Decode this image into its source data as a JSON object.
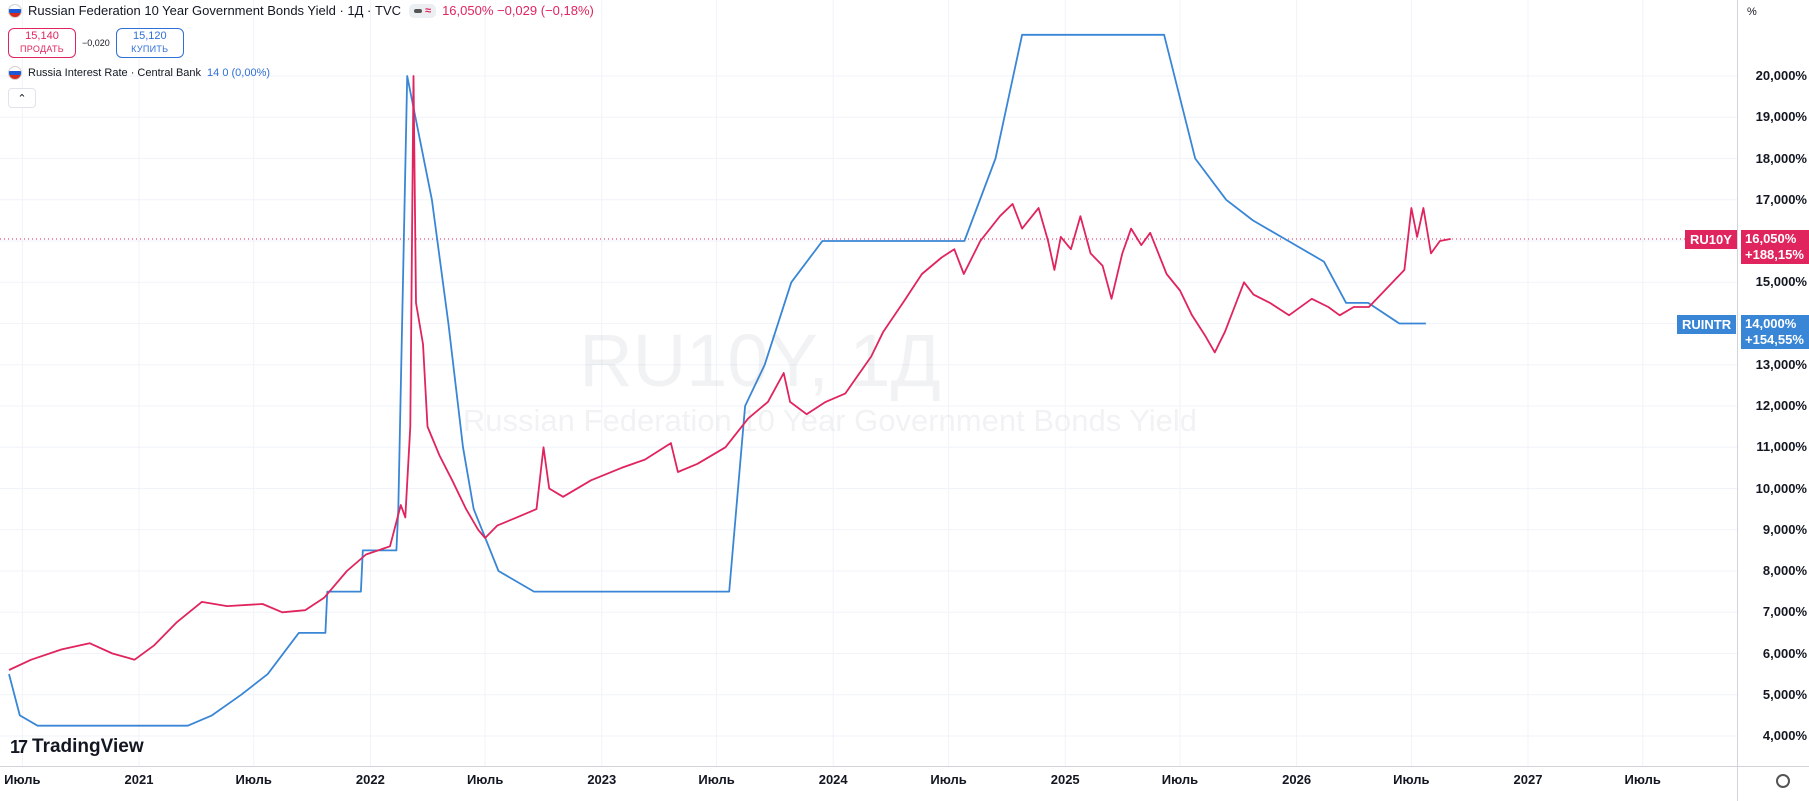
{
  "header": {
    "title": "Russian Federation 10 Year Government Bonds Yield · 1Д · TVC",
    "change": "16,050% −0,029 (−0,18%)",
    "sell_value": "15,140",
    "sell_label": "ПРОДАТЬ",
    "spread": "−0,020",
    "buy_value": "15,120",
    "buy_label": "КУПИТЬ",
    "overlay_title": "Russia Interest Rate · Central Bank",
    "overlay_value": "14 0 (0,00%)",
    "collapse_icon": "chevron-up-icon"
  },
  "watermark": {
    "main": "RU10Y, 1Д",
    "sub": "Russian Federation 10 Year Government Bonds Yield"
  },
  "branding": {
    "logo": "TradingView"
  },
  "chart_data": {
    "type": "line",
    "y_unit": "%",
    "ylim": [
      3.5,
      21.8
    ],
    "y_ticks": [
      "4,000%",
      "5,000%",
      "6,000%",
      "7,000%",
      "8,000%",
      "9,000%",
      "10,000%",
      "11,000%",
      "12,000%",
      "13,000%",
      "14,000%",
      "15,000%",
      "16,000%",
      "17,000%",
      "18,000%",
      "19,000%",
      "20,000%"
    ],
    "x_ticks": [
      {
        "label": "Июль",
        "date": "2020-07-01"
      },
      {
        "label": "2021",
        "date": "2021-01-01"
      },
      {
        "label": "Июль",
        "date": "2021-07-01"
      },
      {
        "label": "2022",
        "date": "2022-01-01"
      },
      {
        "label": "Июль",
        "date": "2022-07-01"
      },
      {
        "label": "2023",
        "date": "2023-01-01"
      },
      {
        "label": "Июль",
        "date": "2023-07-01"
      },
      {
        "label": "2024",
        "date": "2024-01-01"
      },
      {
        "label": "Июль",
        "date": "2024-07-01"
      },
      {
        "label": "2025",
        "date": "2025-01-01"
      },
      {
        "label": "Июль",
        "date": "2025-07-01"
      },
      {
        "label": "2026",
        "date": "2026-01-01"
      },
      {
        "label": "Июль",
        "date": "2026-07-01"
      },
      {
        "label": "2027",
        "date": "2027-01-01"
      },
      {
        "label": "Июль",
        "date": "2027-07-01"
      }
    ],
    "grid": true,
    "series": [
      {
        "name": "RU10Y",
        "color": "#e0245e",
        "last_value": "16,050%",
        "last_change": "+188,15%",
        "points": [
          [
            "2020-06-10",
            5.6
          ],
          [
            "2020-07-15",
            5.85
          ],
          [
            "2020-09-01",
            6.1
          ],
          [
            "2020-10-15",
            6.25
          ],
          [
            "2020-11-20",
            6.0
          ],
          [
            "2020-12-25",
            5.85
          ],
          [
            "2021-01-25",
            6.2
          ],
          [
            "2021-03-01",
            6.75
          ],
          [
            "2021-04-10",
            7.25
          ],
          [
            "2021-05-20",
            7.15
          ],
          [
            "2021-07-15",
            7.2
          ],
          [
            "2021-08-15",
            7.0
          ],
          [
            "2021-09-20",
            7.05
          ],
          [
            "2021-10-20",
            7.35
          ],
          [
            "2021-11-25",
            8.0
          ],
          [
            "2021-12-25",
            8.4
          ],
          [
            "2022-02-01",
            8.6
          ],
          [
            "2022-02-18",
            9.6
          ],
          [
            "2022-02-25",
            9.3
          ],
          [
            "2022-03-05",
            11.5
          ],
          [
            "2022-03-10",
            20.0
          ],
          [
            "2022-03-14",
            14.5
          ],
          [
            "2022-03-25",
            13.5
          ],
          [
            "2022-04-01",
            11.5
          ],
          [
            "2022-04-20",
            10.8
          ],
          [
            "2022-05-10",
            10.2
          ],
          [
            "2022-06-01",
            9.5
          ],
          [
            "2022-06-20",
            9.0
          ],
          [
            "2022-07-01",
            8.8
          ],
          [
            "2022-07-20",
            9.1
          ],
          [
            "2022-08-20",
            9.3
          ],
          [
            "2022-09-20",
            9.5
          ],
          [
            "2022-10-01",
            11.0
          ],
          [
            "2022-10-10",
            10.0
          ],
          [
            "2022-11-01",
            9.8
          ],
          [
            "2022-12-15",
            10.2
          ],
          [
            "2023-02-01",
            10.5
          ],
          [
            "2023-03-10",
            10.7
          ],
          [
            "2023-04-20",
            11.1
          ],
          [
            "2023-05-01",
            10.4
          ],
          [
            "2023-06-01",
            10.6
          ],
          [
            "2023-07-15",
            11.0
          ],
          [
            "2023-08-20",
            11.7
          ],
          [
            "2023-09-20",
            12.1
          ],
          [
            "2023-10-15",
            12.8
          ],
          [
            "2023-10-25",
            12.1
          ],
          [
            "2023-11-20",
            11.8
          ],
          [
            "2023-12-20",
            12.1
          ],
          [
            "2024-01-20",
            12.3
          ],
          [
            "2024-03-01",
            13.2
          ],
          [
            "2024-03-20",
            13.8
          ],
          [
            "2024-04-20",
            14.5
          ],
          [
            "2024-05-20",
            15.2
          ],
          [
            "2024-06-20",
            15.6
          ],
          [
            "2024-07-10",
            15.8
          ],
          [
            "2024-07-25",
            15.2
          ],
          [
            "2024-08-20",
            16.0
          ],
          [
            "2024-09-20",
            16.6
          ],
          [
            "2024-10-10",
            16.9
          ],
          [
            "2024-10-25",
            16.3
          ],
          [
            "2024-11-20",
            16.8
          ],
          [
            "2024-12-05",
            16.0
          ],
          [
            "2024-12-15",
            15.3
          ],
          [
            "2024-12-25",
            16.1
          ],
          [
            "2025-01-10",
            15.8
          ],
          [
            "2025-01-25",
            16.6
          ],
          [
            "2025-02-10",
            15.7
          ],
          [
            "2025-03-01",
            15.4
          ],
          [
            "2025-03-15",
            14.6
          ],
          [
            "2025-04-01",
            15.7
          ],
          [
            "2025-04-15",
            16.3
          ],
          [
            "2025-05-01",
            15.9
          ],
          [
            "2025-05-15",
            16.2
          ],
          [
            "2025-06-10",
            15.2
          ],
          [
            "2025-07-01",
            14.8
          ],
          [
            "2025-07-20",
            14.2
          ],
          [
            "2025-08-10",
            13.7
          ],
          [
            "2025-08-25",
            13.3
          ],
          [
            "2025-09-10",
            13.8
          ],
          [
            "2025-10-10",
            15.0
          ],
          [
            "2025-10-25",
            14.7
          ],
          [
            "2025-11-20",
            14.5
          ],
          [
            "2025-12-20",
            14.2
          ],
          [
            "2026-01-25",
            14.6
          ],
          [
            "2026-02-20",
            14.4
          ],
          [
            "2026-03-10",
            14.2
          ],
          [
            "2026-04-01",
            14.4
          ],
          [
            "2026-04-25",
            14.4
          ],
          [
            "2026-05-20",
            14.8
          ],
          [
            "2026-06-20",
            15.3
          ],
          [
            "2026-07-01",
            16.8
          ],
          [
            "2026-07-10",
            16.1
          ],
          [
            "2026-07-20",
            16.8
          ],
          [
            "2026-08-01",
            15.7
          ],
          [
            "2026-08-15",
            16.0
          ],
          [
            "2026-09-01",
            16.05
          ]
        ]
      },
      {
        "name": "RUINTR",
        "color": "#3a86d6",
        "last_value": "14,000%",
        "last_change": "+154,55%",
        "points": [
          [
            "2020-06-10",
            5.5
          ],
          [
            "2020-06-27",
            4.5
          ],
          [
            "2020-07-25",
            4.25
          ],
          [
            "2021-03-19",
            4.25
          ],
          [
            "2021-04-26",
            4.5
          ],
          [
            "2021-06-11",
            5.0
          ],
          [
            "2021-07-23",
            5.5
          ],
          [
            "2021-09-10",
            6.5
          ],
          [
            "2021-10-22",
            6.5
          ],
          [
            "2021-10-25",
            7.5
          ],
          [
            "2021-12-17",
            7.5
          ],
          [
            "2021-12-20",
            8.5
          ],
          [
            "2022-02-11",
            8.5
          ],
          [
            "2022-02-14",
            9.5
          ],
          [
            "2022-02-28",
            20.0
          ],
          [
            "2022-04-08",
            17.0
          ],
          [
            "2022-05-04",
            14.0
          ],
          [
            "2022-05-27",
            11.0
          ],
          [
            "2022-06-13",
            9.5
          ],
          [
            "2022-07-22",
            8.0
          ],
          [
            "2022-09-16",
            7.5
          ],
          [
            "2023-07-21",
            7.5
          ],
          [
            "2023-08-15",
            12.0
          ],
          [
            "2023-09-15",
            13.0
          ],
          [
            "2023-10-27",
            15.0
          ],
          [
            "2023-12-15",
            16.0
          ],
          [
            "2024-07-26",
            16.0
          ],
          [
            "2024-09-13",
            18.0
          ],
          [
            "2024-10-25",
            21.0
          ],
          [
            "2025-06-06",
            21.0
          ],
          [
            "2025-07-25",
            18.0
          ],
          [
            "2025-09-12",
            17.0
          ],
          [
            "2025-10-24",
            16.5
          ],
          [
            "2025-12-19",
            16.0
          ],
          [
            "2026-02-13",
            15.5
          ],
          [
            "2026-03-20",
            14.5
          ],
          [
            "2026-04-24",
            14.5
          ],
          [
            "2026-06-12",
            14.0
          ],
          [
            "2026-07-24",
            14.0
          ]
        ]
      }
    ]
  }
}
